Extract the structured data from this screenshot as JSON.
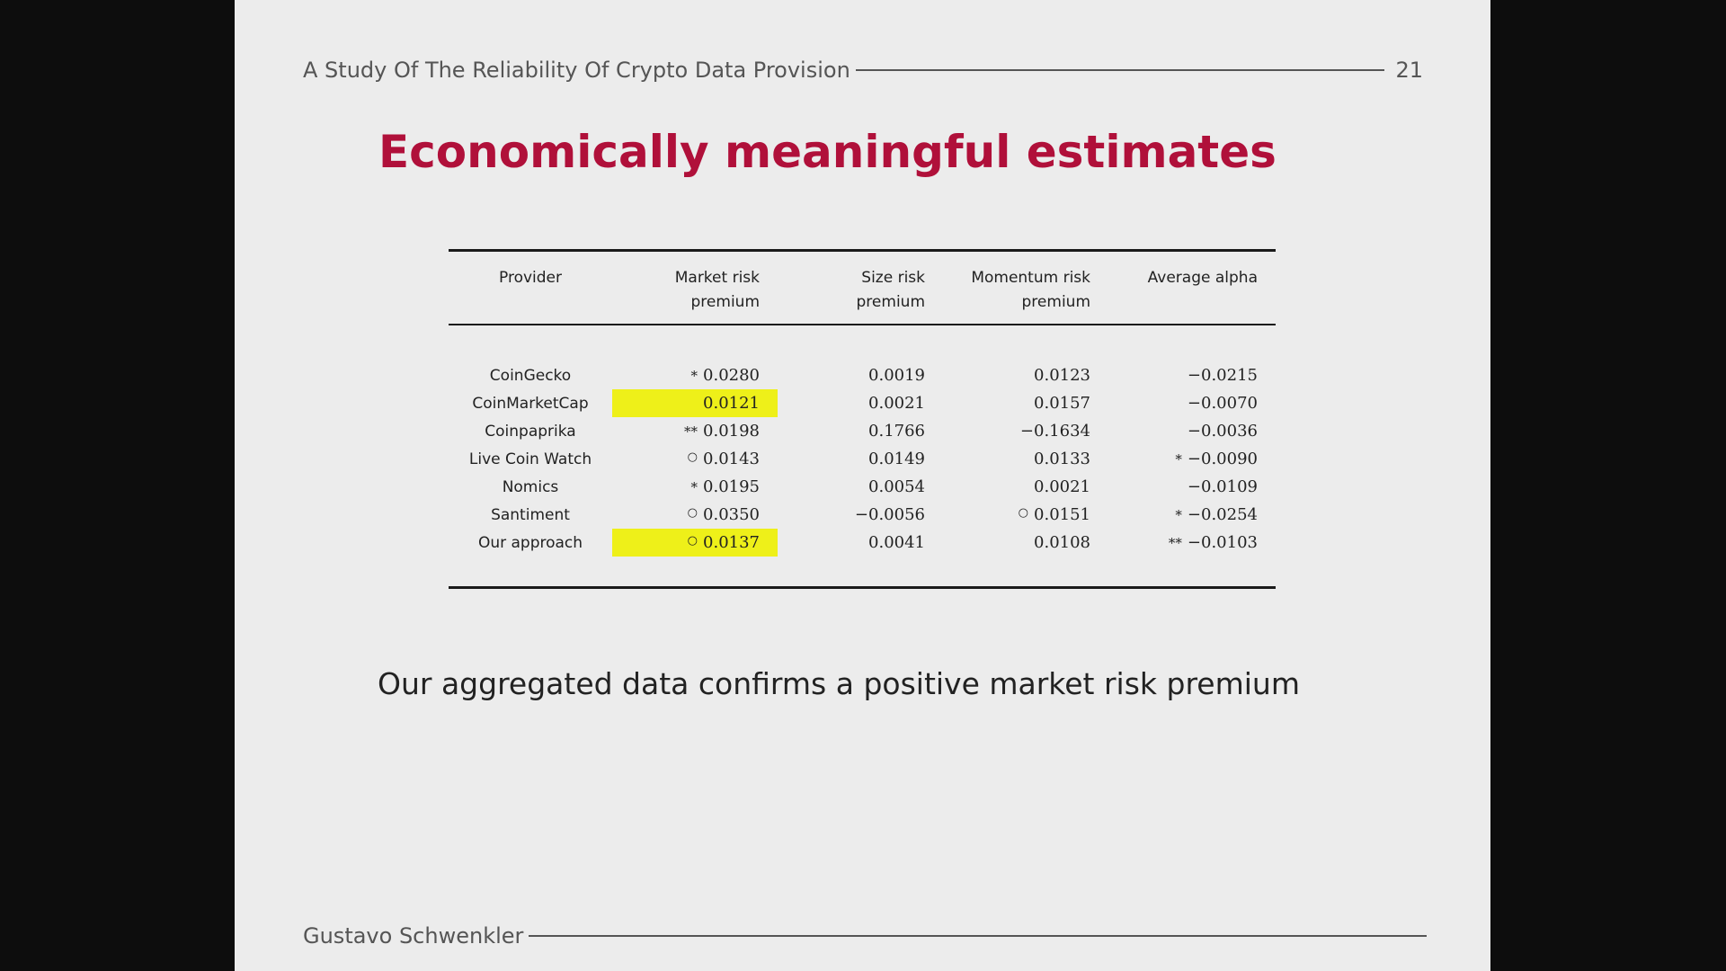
{
  "header": {
    "title": "A Study Of The Reliability Of Crypto Data Provision",
    "page_number": "21"
  },
  "slide_title": "Economically meaningful estimates",
  "table": {
    "columns": [
      "Provider",
      "Market risk premium",
      "Size risk premium",
      "Momentum risk premium",
      "Average alpha"
    ],
    "rows": [
      {
        "provider": "CoinGecko",
        "market": {
          "sig": "*",
          "value": "0.0280"
        },
        "size": {
          "sig": "",
          "value": "0.0019"
        },
        "momentum": {
          "sig": "",
          "value": "0.0123"
        },
        "alpha": {
          "sig": "",
          "value": "−0.0215"
        }
      },
      {
        "provider": "CoinMarketCap",
        "market": {
          "sig": "",
          "value": "0.0121",
          "highlight": true
        },
        "size": {
          "sig": "",
          "value": "0.0021"
        },
        "momentum": {
          "sig": "",
          "value": "0.0157"
        },
        "alpha": {
          "sig": "",
          "value": "−0.0070"
        }
      },
      {
        "provider": "Coinpaprika",
        "market": {
          "sig": "**",
          "value": "0.0198"
        },
        "size": {
          "sig": "",
          "value": "0.1766"
        },
        "momentum": {
          "sig": "",
          "value": "−0.1634"
        },
        "alpha": {
          "sig": "",
          "value": "−0.0036"
        }
      },
      {
        "provider": "Live Coin Watch",
        "market": {
          "sig": "○",
          "value": "0.0143"
        },
        "size": {
          "sig": "",
          "value": "0.0149"
        },
        "momentum": {
          "sig": "",
          "value": "0.0133"
        },
        "alpha": {
          "sig": "*",
          "value": "−0.0090"
        }
      },
      {
        "provider": "Nomics",
        "market": {
          "sig": "*",
          "value": "0.0195"
        },
        "size": {
          "sig": "",
          "value": "0.0054"
        },
        "momentum": {
          "sig": "",
          "value": "0.0021"
        },
        "alpha": {
          "sig": "",
          "value": "−0.0109"
        }
      },
      {
        "provider": "Santiment",
        "market": {
          "sig": "○",
          "value": "0.0350"
        },
        "size": {
          "sig": "",
          "value": "−0.0056"
        },
        "momentum": {
          "sig": "○",
          "value": "0.0151"
        },
        "alpha": {
          "sig": "*",
          "value": "−0.0254"
        }
      },
      {
        "provider": "Our approach",
        "market": {
          "sig": "○",
          "value": "0.0137",
          "highlight": true
        },
        "size": {
          "sig": "",
          "value": "0.0041"
        },
        "momentum": {
          "sig": "",
          "value": "0.0108"
        },
        "alpha": {
          "sig": "**",
          "value": "−0.0103"
        }
      }
    ]
  },
  "statement": "Our aggregated data confirms a positive market risk premium",
  "footer": {
    "author": "Gustavo Schwenkler"
  },
  "colors": {
    "title": "#b0103a",
    "highlight": "#eef019",
    "slide_bg": "#ececec",
    "frame_bg": "#0d0d0d"
  }
}
